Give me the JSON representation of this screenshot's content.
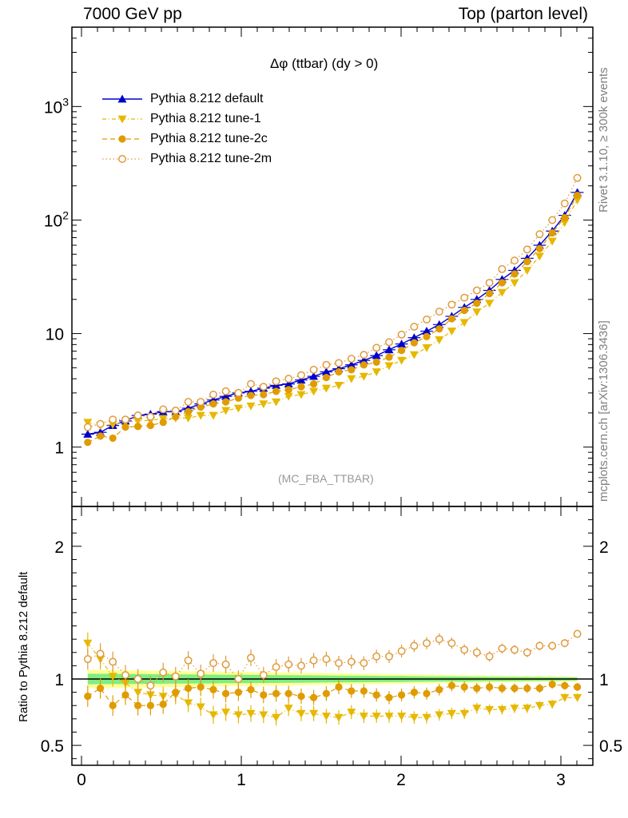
{
  "header": {
    "left": "7000 GeV pp",
    "right": "Top (parton level)"
  },
  "side_labels": {
    "top": "Rivet 3.1.10, ≥ 300k events",
    "bottom": "mcplots.cern.ch [arXiv:1306.3436]"
  },
  "reference_label": "(MC_FBA_TTBAR)",
  "colors": {
    "default": "#0000cc",
    "tune1": "#e6b800",
    "tune2c": "#e09b00",
    "tune2m": "#e09a3c",
    "band_inner": "#80ee80",
    "band_outer": "#ffff99"
  },
  "chart_data": [
    {
      "type": "line",
      "title": "Δφ (ttbar) (dy > 0)",
      "xlim": [
        -0.06,
        3.2
      ],
      "ylim": [
        0.3,
        5000
      ],
      "yscale": "log",
      "ytick_labels": [
        "1",
        "10",
        "10^2",
        "10^3"
      ],
      "xtick_labels": [
        "0",
        "1",
        "2",
        "3"
      ],
      "grid": false,
      "legend_position": "top-left",
      "x": [
        0.039,
        0.118,
        0.196,
        0.275,
        0.353,
        0.432,
        0.511,
        0.589,
        0.668,
        0.746,
        0.825,
        0.903,
        0.982,
        1.06,
        1.139,
        1.218,
        1.296,
        1.375,
        1.453,
        1.532,
        1.61,
        1.689,
        1.767,
        1.846,
        1.925,
        2.003,
        2.082,
        2.16,
        2.239,
        2.317,
        2.396,
        2.474,
        2.553,
        2.632,
        2.71,
        2.789,
        2.867,
        2.946,
        3.024,
        3.103
      ],
      "series": [
        {
          "name": "Pythia 8.212 default",
          "marker": "triangle-up",
          "values": [
            1.3,
            1.35,
            1.55,
            1.7,
            1.9,
            1.95,
            2.05,
            2.05,
            2.2,
            2.4,
            2.6,
            2.8,
            3.0,
            3.1,
            3.3,
            3.5,
            3.6,
            3.9,
            4.2,
            4.6,
            4.9,
            5.3,
            5.8,
            6.4,
            7.2,
            8.1,
            9.2,
            10.5,
            12.0,
            14.2,
            17.0,
            20.0,
            24.0,
            30.0,
            36.0,
            46.0,
            60.0,
            80.0,
            110,
            175
          ]
        },
        {
          "name": "Pythia 8.212 tune-1",
          "marker": "triangle-down",
          "values": [
            1.65,
            1.55,
            1.58,
            1.65,
            1.7,
            1.72,
            1.78,
            1.8,
            1.8,
            1.9,
            1.9,
            2.1,
            2.2,
            2.3,
            2.4,
            2.5,
            2.8,
            2.9,
            3.1,
            3.3,
            3.5,
            4.0,
            4.2,
            4.6,
            5.2,
            5.8,
            6.5,
            7.5,
            8.8,
            10.5,
            12.5,
            15.5,
            18.5,
            23.0,
            28.0,
            36.0,
            48.0,
            65.0,
            95.0,
            150
          ]
        },
        {
          "name": "Pythia 8.212 tune-2c",
          "marker": "circle",
          "values": [
            1.1,
            1.25,
            1.2,
            1.5,
            1.52,
            1.55,
            1.65,
            1.85,
            2.05,
            2.25,
            2.4,
            2.5,
            2.7,
            2.85,
            2.9,
            3.1,
            3.2,
            3.4,
            3.6,
            4.1,
            4.6,
            4.8,
            5.3,
            5.6,
            6.2,
            7.1,
            8.3,
            9.4,
            11.0,
            13.5,
            16.0,
            18.5,
            22.5,
            28.0,
            33.5,
            43.0,
            56.0,
            77.0,
            105,
            165
          ]
        },
        {
          "name": "Pythia 8.212 tune-2m",
          "marker": "circle-open",
          "values": [
            1.5,
            1.6,
            1.75,
            1.75,
            1.9,
            1.85,
            2.15,
            2.1,
            2.5,
            2.5,
            2.9,
            3.1,
            3.0,
            3.6,
            3.4,
            3.8,
            4.0,
            4.3,
            4.8,
            5.3,
            5.5,
            6.0,
            6.5,
            7.5,
            8.4,
            9.8,
            11.5,
            13.3,
            15.6,
            18.0,
            20.7,
            24.0,
            28.0,
            37.0,
            44.0,
            55.0,
            75.0,
            100,
            140,
            235
          ]
        }
      ]
    },
    {
      "type": "line",
      "ylabel": "Ratio to Pythia 8.212 default",
      "xlim": [
        -0.06,
        3.2
      ],
      "ylim": [
        0.35,
        2.3
      ],
      "ytick_labels": [
        "0.5",
        "1",
        "2"
      ],
      "xtick_labels": [
        "0",
        "1",
        "2",
        "3"
      ],
      "series": [
        {
          "name": "Pythia 8.212 tune-1",
          "values": [
            1.27,
            1.15,
            1.02,
            0.97,
            0.9,
            0.88,
            0.87,
            0.88,
            0.82,
            0.79,
            0.73,
            0.75,
            0.73,
            0.74,
            0.73,
            0.71,
            0.78,
            0.74,
            0.74,
            0.72,
            0.71,
            0.75,
            0.72,
            0.72,
            0.72,
            0.72,
            0.71,
            0.71,
            0.73,
            0.74,
            0.74,
            0.78,
            0.77,
            0.77,
            0.78,
            0.78,
            0.8,
            0.81,
            0.86,
            0.86
          ]
        },
        {
          "name": "Pythia 8.212 tune-2c",
          "values": [
            0.87,
            0.93,
            0.8,
            0.88,
            0.8,
            0.8,
            0.81,
            0.9,
            0.93,
            0.94,
            0.92,
            0.89,
            0.9,
            0.92,
            0.88,
            0.89,
            0.89,
            0.87,
            0.86,
            0.89,
            0.94,
            0.91,
            0.91,
            0.88,
            0.86,
            0.88,
            0.9,
            0.89,
            0.92,
            0.95,
            0.94,
            0.93,
            0.94,
            0.93,
            0.93,
            0.93,
            0.93,
            0.96,
            0.95,
            0.94
          ]
        },
        {
          "name": "Pythia 8.212 tune-2m",
          "values": [
            1.15,
            1.19,
            1.13,
            1.03,
            1.0,
            0.95,
            1.05,
            1.02,
            1.14,
            1.04,
            1.12,
            1.11,
            1.0,
            1.16,
            1.03,
            1.09,
            1.11,
            1.1,
            1.14,
            1.15,
            1.12,
            1.13,
            1.12,
            1.17,
            1.17,
            1.21,
            1.25,
            1.27,
            1.3,
            1.27,
            1.22,
            1.2,
            1.17,
            1.23,
            1.22,
            1.2,
            1.25,
            1.25,
            1.27,
            1.34
          ]
        }
      ]
    }
  ]
}
